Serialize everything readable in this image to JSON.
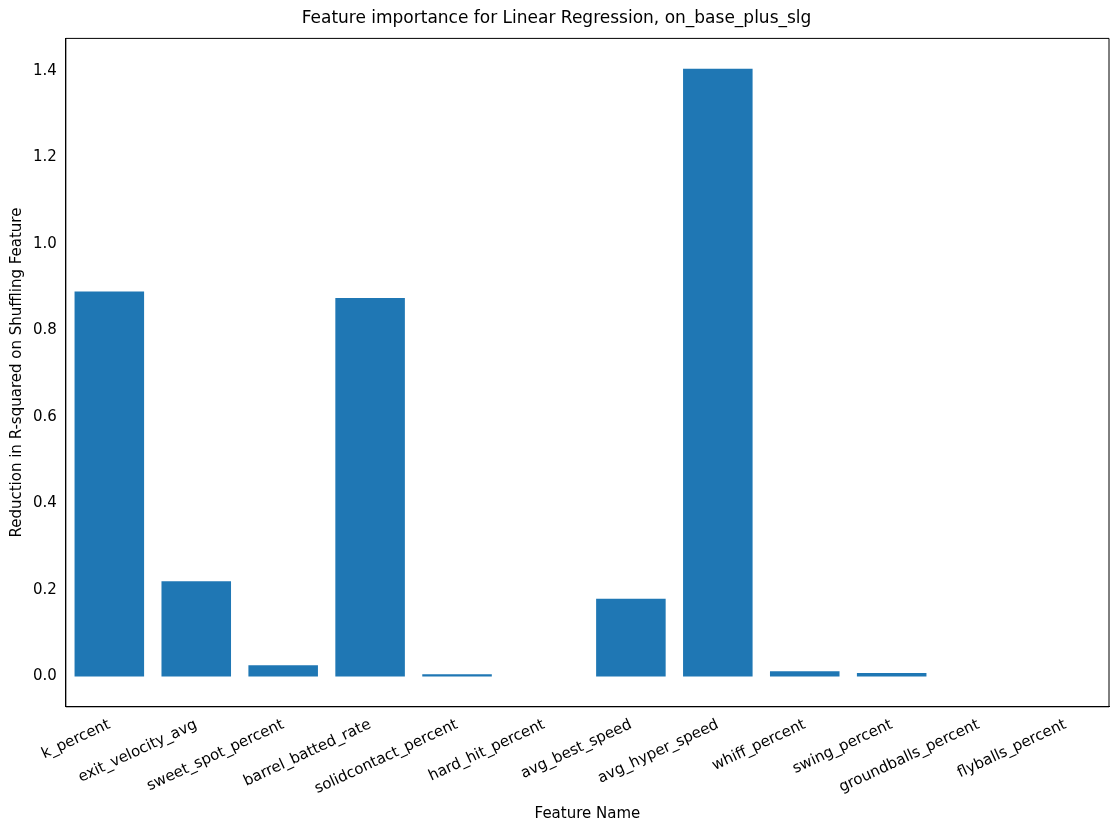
{
  "chart_data": {
    "type": "bar",
    "title": "Feature importance for Linear Regression, on_base_plus_slg",
    "xlabel": "Feature Name",
    "ylabel": "Reduction in R-squared on Shuffling Feature",
    "categories": [
      "k_percent",
      "exit_velocity_avg",
      "sweet_spot_percent",
      "barrel_batted_rate",
      "solidcontact_percent",
      "hard_hit_percent",
      "avg_best_speed",
      "avg_hyper_speed",
      "whiff_percent",
      "swing_percent",
      "groundballs_percent",
      "flyballs_percent"
    ],
    "values": [
      0.89,
      0.22,
      0.026,
      0.875,
      0.005,
      0,
      0.18,
      1.405,
      0.012,
      0.008,
      0,
      0
    ],
    "color": "#1f77b4",
    "ylim": [
      -0.07,
      1.475
    ],
    "yticks": [
      {
        "value": 0,
        "label": "0.0"
      },
      0.2,
      0.4,
      0.6,
      0.8,
      {
        "value": 1,
        "label": "1.0"
      },
      1.2,
      1.4
    ],
    "grid": false,
    "legend": false
  }
}
